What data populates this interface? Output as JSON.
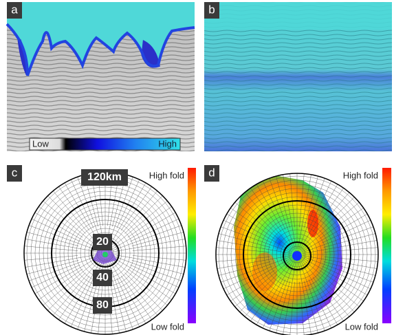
{
  "panels": [
    {
      "label": "a",
      "colorbar": {
        "low": "Low",
        "high": "High"
      }
    },
    {
      "label": "b"
    },
    {
      "label": "c",
      "rings": [
        "20",
        "40",
        "80",
        "120km"
      ],
      "colorbar": {
        "high": "High fold",
        "low": "Low fold"
      }
    },
    {
      "label": "d",
      "colorbar": {
        "high": "High fold",
        "low": "Low fold"
      }
    }
  ]
}
